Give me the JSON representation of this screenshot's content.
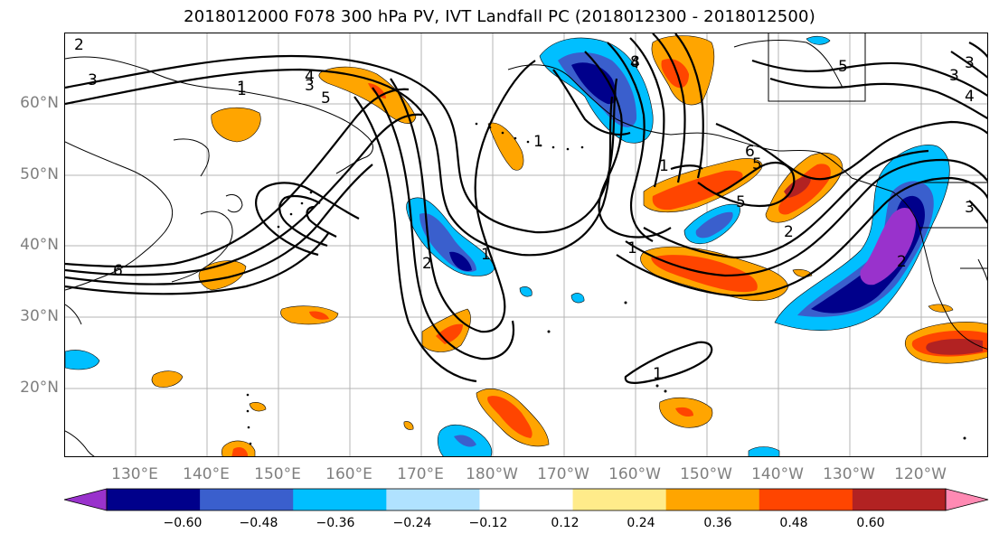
{
  "title": "2018012000 F078 300 hPa PV, IVT Landfall PC (2018012300 - 2018012500)",
  "lat_labels": [
    "60°N",
    "50°N",
    "40°N",
    "30°N",
    "20°N"
  ],
  "lon_labels": [
    "130°E",
    "140°E",
    "150°E",
    "160°E",
    "170°E",
    "180°W",
    "170°W",
    "160°W",
    "150°W",
    "140°W",
    "130°W",
    "120°W"
  ],
  "contour_labels": [
    "2",
    "3",
    "3",
    "4",
    "5",
    "6",
    "1",
    "2",
    "1",
    "4",
    "1",
    "8",
    "5",
    "6",
    "5",
    "1",
    "2",
    "1",
    "2",
    "1",
    "3",
    "5",
    "3",
    "4",
    "3",
    "1"
  ],
  "colorbar": {
    "ticks": [
      "−0.60",
      "−0.48",
      "−0.36",
      "−0.24",
      "−0.12",
      "0.12",
      "0.24",
      "0.36",
      "0.48",
      "0.60"
    ],
    "colors": [
      "#9932cc",
      "#00008b",
      "#3a5fcd",
      "#00bfff",
      "#b0e2ff",
      "#ffffff",
      "#ffeb8a",
      "#ffa500",
      "#ff4500",
      "#b22222",
      "#ff8ab3"
    ]
  }
}
